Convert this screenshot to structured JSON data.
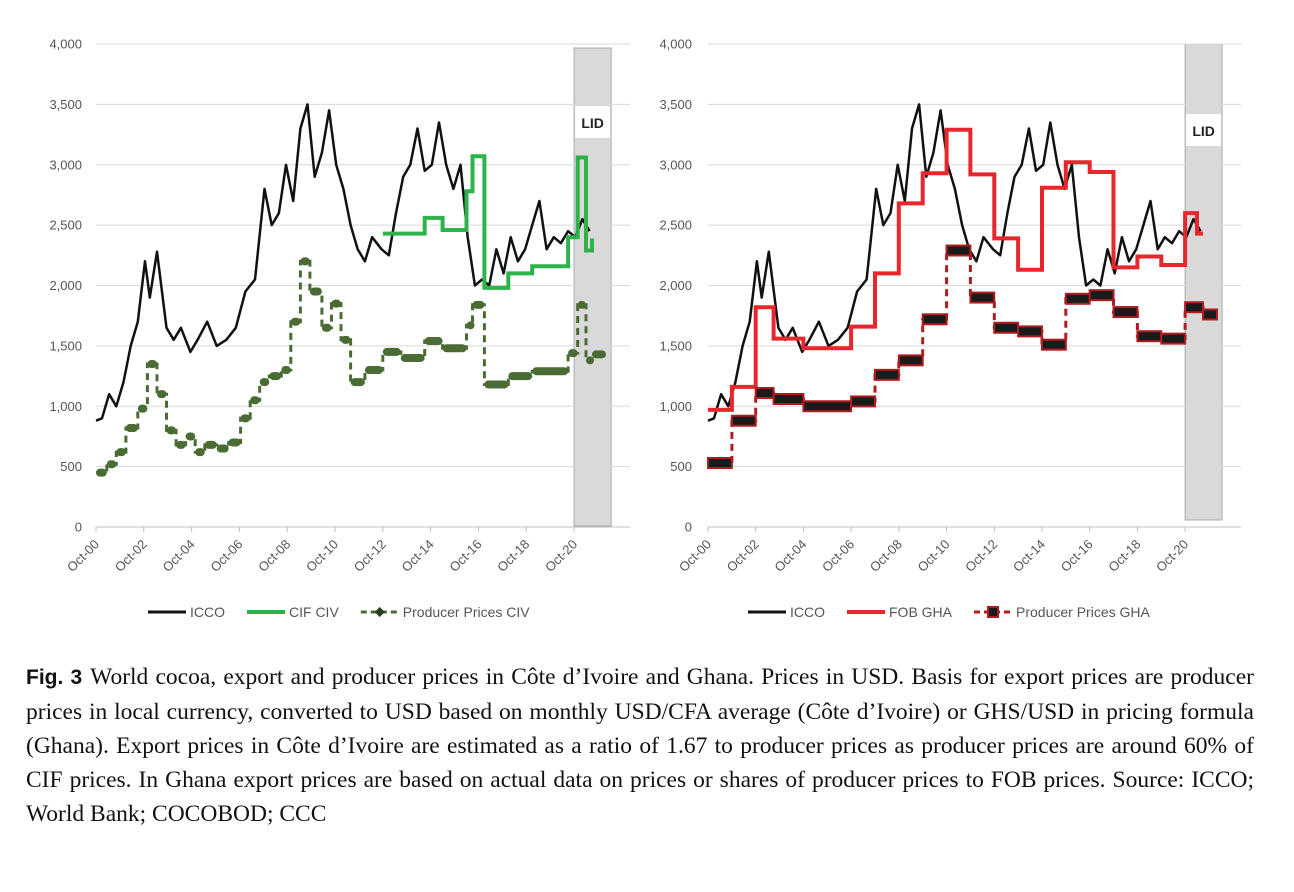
{
  "figure": {
    "label": "Fig. 3",
    "caption": "World cocoa, export and producer prices in Côte d’Ivoire and Ghana.  Prices in USD. Basis for export prices are producer prices in local currency, converted to USD based on monthly USD/CFA average (Côte d’Ivoire) or GHS/USD in pricing formula (Ghana). Export prices in Côte d’Ivoire are estimated as a ratio of 1.67 to producer prices as producer prices are around 60% of CIF prices. In Ghana export prices are based on actual data on prices or shares of producer prices to FOB prices. Source: ICCO; World Bank; COCOBOD; CCC"
  },
  "colors": {
    "icco": "#111111",
    "cif_civ": "#2db34a",
    "producer_civ": "#4a6b34",
    "fob_gha": "#e8262b",
    "producer_gha": "#b01c22",
    "grid": "#d9d9d9",
    "lid_shade": "#d9d9d9"
  },
  "chart_data": [
    {
      "type": "line",
      "ylim": [
        0,
        4000
      ],
      "xlim": [
        2000.75,
        2021.5
      ],
      "yticks": [
        "0",
        "500",
        "1,000",
        "1,500",
        "2,000",
        "2,500",
        "3,000",
        "3,500",
        "4,000"
      ],
      "xticks": [
        "Oct-00",
        "Oct-02",
        "Oct-04",
        "Oct-06",
        "Oct-08",
        "Oct-10",
        "Oct-12",
        "Oct-14",
        "Oct-16",
        "Oct-18",
        "Oct-20"
      ],
      "grid": true,
      "legend_position": "bottom",
      "shaded_region": {
        "label": "LID",
        "x_start": 2020.75,
        "x_end": 2022.3
      },
      "series": [
        {
          "name": "ICCO",
          "style": "solid",
          "x": [
            2000.75,
            2001.0,
            2001.3,
            2001.6,
            2001.9,
            2002.2,
            2002.5,
            2002.8,
            2003.0,
            2003.3,
            2003.7,
            2004.0,
            2004.3,
            2004.7,
            2005.0,
            2005.4,
            2005.8,
            2006.2,
            2006.6,
            2007.0,
            2007.4,
            2007.8,
            2008.1,
            2008.4,
            2008.7,
            2009.0,
            2009.3,
            2009.6,
            2009.9,
            2010.2,
            2010.5,
            2010.8,
            2011.1,
            2011.4,
            2011.7,
            2012.0,
            2012.3,
            2012.7,
            2013.0,
            2013.3,
            2013.6,
            2013.9,
            2014.2,
            2014.5,
            2014.8,
            2015.1,
            2015.4,
            2015.7,
            2016.0,
            2016.3,
            2016.6,
            2016.9,
            2017.2,
            2017.5,
            2017.8,
            2018.1,
            2018.4,
            2018.7,
            2019.0,
            2019.3,
            2019.6,
            2019.9,
            2020.2,
            2020.5,
            2020.8,
            2021.1,
            2021.4
          ],
          "y": [
            880,
            900,
            1100,
            1000,
            1200,
            1500,
            1700,
            2200,
            1900,
            2280,
            1650,
            1550,
            1650,
            1450,
            1550,
            1700,
            1500,
            1550,
            1650,
            1950,
            2050,
            2800,
            2500,
            2600,
            3000,
            2700,
            3300,
            3500,
            2900,
            3100,
            3450,
            3000,
            2800,
            2500,
            2300,
            2200,
            2400,
            2300,
            2250,
            2600,
            2900,
            3000,
            3300,
            2950,
            3000,
            3350,
            3000,
            2800,
            3000,
            2400,
            2000,
            2050,
            2000,
            2300,
            2100,
            2400,
            2200,
            2300,
            2500,
            2700,
            2300,
            2400,
            2350,
            2450,
            2400,
            2550,
            2450
          ]
        },
        {
          "name": "CIF CIV",
          "style": "step",
          "x": [
            2012.75,
            2013.5,
            2014.5,
            2015.25,
            2016.25,
            2016.5,
            2017.0,
            2018.0,
            2019.0,
            2020.5,
            2020.9,
            2021.25,
            2021.5
          ],
          "y": [
            2430,
            2430,
            2560,
            2460,
            2780,
            3070,
            1980,
            2100,
            2160,
            2400,
            3060,
            2290,
            2390
          ]
        },
        {
          "name": "Producer Prices CIV",
          "style": "dashed-markers",
          "x": [
            2000.75,
            2001.2,
            2001.6,
            2002.0,
            2002.5,
            2002.9,
            2003.3,
            2003.7,
            2004.1,
            2004.5,
            2004.9,
            2005.3,
            2005.8,
            2006.3,
            2006.8,
            2007.2,
            2007.6,
            2008.0,
            2008.5,
            2008.9,
            2009.3,
            2009.7,
            2010.2,
            2010.6,
            2011.0,
            2011.4,
            2012.0,
            2012.75,
            2013.5,
            2014.5,
            2015.25,
            2016.25,
            2016.5,
            2017.0,
            2018.0,
            2019.0,
            2020.5,
            2020.9,
            2021.25,
            2021.5
          ],
          "y": [
            450,
            520,
            620,
            820,
            980,
            1350,
            1100,
            800,
            680,
            750,
            620,
            680,
            650,
            700,
            900,
            1050,
            1200,
            1250,
            1300,
            1700,
            2200,
            1950,
            1650,
            1850,
            1550,
            1200,
            1300,
            1450,
            1400,
            1540,
            1480,
            1670,
            1840,
            1180,
            1250,
            1290,
            1440,
            1840,
            1380,
            1430
          ]
        }
      ]
    },
    {
      "type": "line",
      "ylim": [
        0,
        4000
      ],
      "xlim": [
        2000.75,
        2021.5
      ],
      "yticks": [
        "0",
        "500",
        "1,000",
        "1,500",
        "2,000",
        "2,500",
        "3,000",
        "3,500",
        "4,000"
      ],
      "xticks": [
        "Oct-00",
        "Oct-02",
        "Oct-04",
        "Oct-06",
        "Oct-08",
        "Oct-10",
        "Oct-12",
        "Oct-14",
        "Oct-16",
        "Oct-18",
        "Oct-20"
      ],
      "grid": true,
      "legend_position": "bottom",
      "shaded_region": {
        "label": "LID",
        "x_start": 2020.75,
        "x_end": 2022.3
      },
      "series": [
        {
          "name": "ICCO",
          "style": "solid",
          "x": [
            2000.75,
            2001.0,
            2001.3,
            2001.6,
            2001.9,
            2002.2,
            2002.5,
            2002.8,
            2003.0,
            2003.3,
            2003.7,
            2004.0,
            2004.3,
            2004.7,
            2005.0,
            2005.4,
            2005.8,
            2006.2,
            2006.6,
            2007.0,
            2007.4,
            2007.8,
            2008.1,
            2008.4,
            2008.7,
            2009.0,
            2009.3,
            2009.6,
            2009.9,
            2010.2,
            2010.5,
            2010.8,
            2011.1,
            2011.4,
            2011.7,
            2012.0,
            2012.3,
            2012.7,
            2013.0,
            2013.3,
            2013.6,
            2013.9,
            2014.2,
            2014.5,
            2014.8,
            2015.1,
            2015.4,
            2015.7,
            2016.0,
            2016.3,
            2016.6,
            2016.9,
            2017.2,
            2017.5,
            2017.8,
            2018.1,
            2018.4,
            2018.7,
            2019.0,
            2019.3,
            2019.6,
            2019.9,
            2020.2,
            2020.5,
            2020.8,
            2021.1,
            2021.4
          ],
          "y": [
            880,
            900,
            1100,
            1000,
            1200,
            1500,
            1700,
            2200,
            1900,
            2280,
            1650,
            1550,
            1650,
            1450,
            1550,
            1700,
            1500,
            1550,
            1650,
            1950,
            2050,
            2800,
            2500,
            2600,
            3000,
            2700,
            3300,
            3500,
            2900,
            3100,
            3450,
            3000,
            2800,
            2500,
            2300,
            2200,
            2400,
            2300,
            2250,
            2600,
            2900,
            3000,
            3300,
            2950,
            3000,
            3350,
            3000,
            2800,
            3000,
            2400,
            2000,
            2050,
            2000,
            2300,
            2100,
            2400,
            2200,
            2300,
            2500,
            2700,
            2300,
            2400,
            2350,
            2450,
            2400,
            2550,
            2450
          ]
        },
        {
          "name": "FOB GHA",
          "style": "step",
          "x": [
            2000.75,
            2001.75,
            2002.75,
            2003.5,
            2004.75,
            2006.75,
            2007.75,
            2008.75,
            2009.75,
            2010.75,
            2011.75,
            2012.75,
            2013.75,
            2014.75,
            2015.75,
            2016.75,
            2017.75,
            2018.75,
            2019.75,
            2020.75,
            2021.25,
            2021.5
          ],
          "y": [
            970,
            1160,
            1820,
            1560,
            1480,
            1660,
            2100,
            2680,
            2930,
            3290,
            2920,
            2390,
            2130,
            2810,
            3020,
            2940,
            2150,
            2240,
            2170,
            2600,
            2430,
            2430
          ]
        },
        {
          "name": "Producer Prices GHA",
          "style": "dashed-markers",
          "x": [
            2000.75,
            2001.75,
            2002.75,
            2003.5,
            2004.75,
            2006.75,
            2007.75,
            2008.75,
            2009.75,
            2010.75,
            2011.75,
            2012.75,
            2013.75,
            2014.75,
            2015.75,
            2016.75,
            2017.75,
            2018.75,
            2019.75,
            2020.75,
            2021.5
          ],
          "y": [
            530,
            880,
            1110,
            1060,
            1000,
            1040,
            1260,
            1380,
            1720,
            2290,
            1900,
            1650,
            1620,
            1510,
            1890,
            1920,
            1780,
            1580,
            1560,
            1820,
            1760
          ]
        }
      ]
    }
  ]
}
